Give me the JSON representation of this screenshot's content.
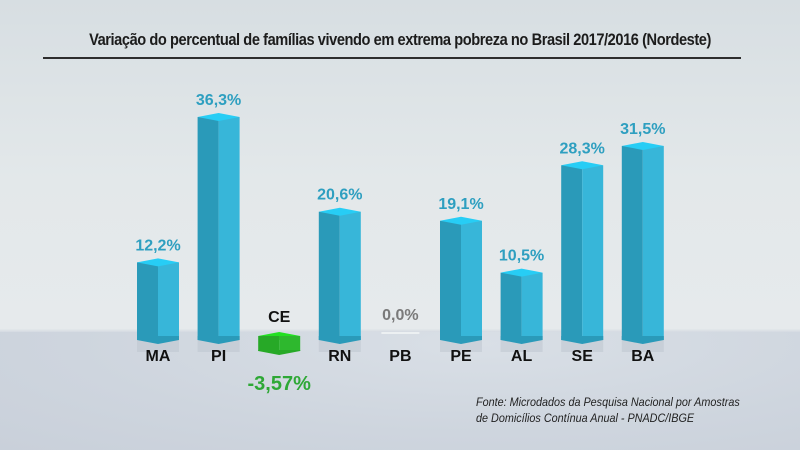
{
  "chart_data": {
    "type": "bar",
    "title": "Variação do percentual de famílias vivendo em extrema pobreza no Brasil 2017/2016 (Nordeste)",
    "xlabel": "",
    "ylabel": "",
    "categories": [
      "MA",
      "PI",
      "CE",
      "RN",
      "PB",
      "PE",
      "AL",
      "SE",
      "BA"
    ],
    "values": [
      12.2,
      36.3,
      -3.57,
      20.6,
      0.0,
      19.1,
      10.5,
      28.3,
      31.5
    ],
    "value_labels": [
      "12,2%",
      "36,3%",
      "-3,57%",
      "20,6%",
      "0,0%",
      "19,1%",
      "10,5%",
      "28,3%",
      "31,5%"
    ],
    "ylim": [
      -5,
      40
    ],
    "grid": false,
    "legend": "none",
    "colors": {
      "positive": "#37b6d9",
      "positive_dark": "#2a9ab9",
      "positive_top": "#27cdf5",
      "positive_label": "#2e9fc0",
      "negative": "#2eb82e",
      "negative_label": "#2ea836",
      "zero_label": "#7a7a7a",
      "category_label": "#111111"
    }
  },
  "source": {
    "line1": "Fonte: Microdados da Pesquisa Nacional por Amostras",
    "line2": "de Domicílios Contínua Anual - PNADC/IBGE"
  }
}
